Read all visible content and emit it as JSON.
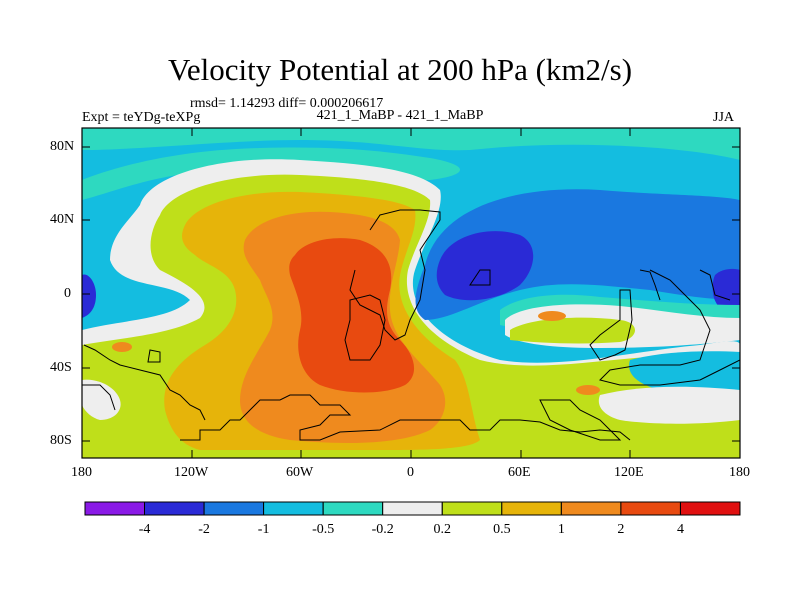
{
  "title": "Velocity Potential at 200 hPa (km2/s)",
  "stats": "rmsd= 1.14293 diff= 0.000206617",
  "left_label": "Expt = teYDg-teXPg",
  "center_label": "421_1_MaBP - 421_1_MaBP",
  "right_label": "JJA",
  "y_ticks": [
    "80N",
    "40N",
    "0",
    "40S",
    "80S"
  ],
  "x_ticks": [
    "180",
    "120W",
    "60W",
    "0",
    "60E",
    "120E",
    "180"
  ],
  "colorbar": {
    "labels": [
      "-4",
      "-2",
      "-1",
      "-0.5",
      "-0.2",
      "0.2",
      "0.5",
      "1",
      "2",
      "4"
    ],
    "colors": [
      "#8a1ae6",
      "#2a2ad6",
      "#1a78e0",
      "#14bde0",
      "#2ed9c0",
      "#eeeeee",
      "#bfdf1a",
      "#e6b40a",
      "#ef8a1e",
      "#e84a10",
      "#e01010"
    ]
  }
}
